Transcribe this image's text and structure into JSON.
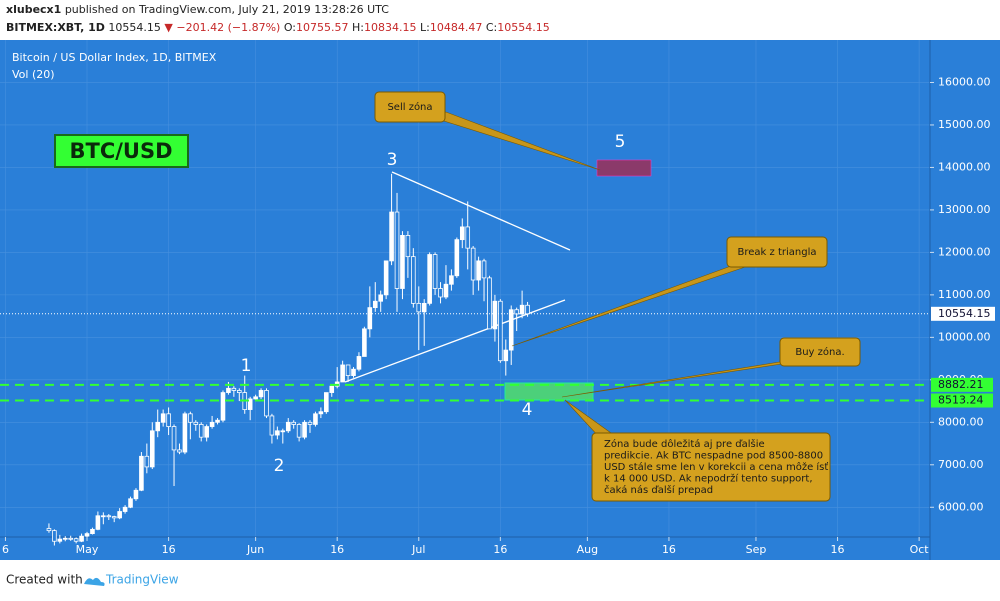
{
  "header": {
    "author": "xlubecx1",
    "published": "published on TradingView.com, July 21, 2019 13:28:26 UTC",
    "symbol": "BITMEX:XBT, 1D",
    "last": "10554.15",
    "change": "▼ −201.42 (−1.87%)",
    "o_label": "O:",
    "o": "10755.57",
    "h_label": "H:",
    "h": "10834.15",
    "l_label": "L:",
    "l": "10484.47",
    "c_label": "C:",
    "c": "10554.15"
  },
  "chart_data": {
    "type": "candlestick",
    "title": "Bitcoin / US Dollar Index, 1D, BITMEX",
    "indicator": "Vol (20)",
    "xlim": [
      "Apr 15",
      "Oct 3"
    ],
    "ylim": [
      5300,
      17000
    ],
    "xticks": [
      {
        "value": "Apr 16",
        "label": "6"
      },
      {
        "value": "May 1",
        "label": "May"
      },
      {
        "value": "May 16",
        "label": "16"
      },
      {
        "value": "Jun 1",
        "label": "Jun"
      },
      {
        "value": "Jun 16",
        "label": "16"
      },
      {
        "value": "Jul 1",
        "label": "Jul"
      },
      {
        "value": "Jul 16",
        "label": "16"
      },
      {
        "value": "Aug 1",
        "label": "Aug"
      },
      {
        "value": "Aug 16",
        "label": "16"
      },
      {
        "value": "Sep 1",
        "label": "Sep"
      },
      {
        "value": "Sep 16",
        "label": "16"
      },
      {
        "value": "Oct 1",
        "label": "Oct"
      }
    ],
    "yticks": [
      {
        "value": 6000,
        "label": "6000.00"
      },
      {
        "value": 7000,
        "label": "7000.00"
      },
      {
        "value": 8000,
        "label": "8000.00"
      },
      {
        "value": 9000,
        "label": "9000.00"
      },
      {
        "value": 10000,
        "label": "10000.00"
      },
      {
        "value": 11000,
        "label": "11000.00"
      },
      {
        "value": 12000,
        "label": "12000.00"
      },
      {
        "value": 13000,
        "label": "13000.00"
      },
      {
        "value": 14000,
        "label": "14000.00"
      },
      {
        "value": 15000,
        "label": "15000.00"
      },
      {
        "value": 16000,
        "label": "16000.00"
      }
    ],
    "grid": true,
    "up_color": "#ffffff",
    "down_color": "#ffffff",
    "x": [
      "Apr 24",
      "Apr 25",
      "Apr 26",
      "Apr 27",
      "Apr 28",
      "Apr 29",
      "Apr 30",
      "May 1",
      "May 2",
      "May 3",
      "May 4",
      "May 5",
      "May 6",
      "May 7",
      "May 8",
      "May 9",
      "May 10",
      "May 11",
      "May 12",
      "May 13",
      "May 14",
      "May 15",
      "May 16",
      "May 17",
      "May 18",
      "May 19",
      "May 20",
      "May 21",
      "May 22",
      "May 23",
      "May 24",
      "May 25",
      "May 26",
      "May 27",
      "May 28",
      "May 29",
      "May 30",
      "May 31",
      "Jun 1",
      "Jun 2",
      "Jun 3",
      "Jun 4",
      "Jun 5",
      "Jun 6",
      "Jun 7",
      "Jun 8",
      "Jun 9",
      "Jun 10",
      "Jun 11",
      "Jun 12",
      "Jun 13",
      "Jun 14",
      "Jun 15",
      "Jun 16",
      "Jun 17",
      "Jun 18",
      "Jun 19",
      "Jun 20",
      "Jun 21",
      "Jun 22",
      "Jun 23",
      "Jun 24",
      "Jun 25",
      "Jun 26",
      "Jun 27",
      "Jun 28",
      "Jun 29",
      "Jun 30",
      "Jul 1",
      "Jul 2",
      "Jul 3",
      "Jul 4",
      "Jul 5",
      "Jul 6",
      "Jul 7",
      "Jul 8",
      "Jul 9",
      "Jul 10",
      "Jul 11",
      "Jul 12",
      "Jul 13",
      "Jul 14",
      "Jul 15",
      "Jul 16",
      "Jul 17",
      "Jul 18",
      "Jul 19",
      "Jul 20",
      "Jul 21"
    ],
    "ohlc": [
      [
        5500,
        5620,
        5400,
        5450
      ],
      [
        5450,
        5480,
        5100,
        5200
      ],
      [
        5200,
        5350,
        5150,
        5250
      ],
      [
        5250,
        5320,
        5200,
        5270
      ],
      [
        5270,
        5330,
        5210,
        5260
      ],
      [
        5260,
        5290,
        5150,
        5200
      ],
      [
        5200,
        5380,
        5180,
        5320
      ],
      [
        5320,
        5420,
        5300,
        5380
      ],
      [
        5380,
        5520,
        5360,
        5480
      ],
      [
        5480,
        5900,
        5460,
        5800
      ],
      [
        5800,
        5880,
        5600,
        5800
      ],
      [
        5800,
        5840,
        5700,
        5780
      ],
      [
        5780,
        5800,
        5650,
        5750
      ],
      [
        5750,
        5980,
        5720,
        5900
      ],
      [
        5900,
        6050,
        5850,
        6000
      ],
      [
        6000,
        6250,
        5980,
        6200
      ],
      [
        6200,
        6450,
        6150,
        6400
      ],
      [
        6400,
        7300,
        6380,
        7200
      ],
      [
        7200,
        7500,
        6800,
        6950
      ],
      [
        6950,
        8000,
        6900,
        7800
      ],
      [
        7800,
        8300,
        7650,
        8000
      ],
      [
        8000,
        8300,
        7900,
        8200
      ],
      [
        8200,
        8350,
        7700,
        7900
      ],
      [
        7900,
        7950,
        6500,
        7350
      ],
      [
        7350,
        7500,
        7250,
        7300
      ],
      [
        7300,
        8250,
        7250,
        8200
      ],
      [
        8200,
        8250,
        7600,
        8000
      ],
      [
        8000,
        8050,
        7800,
        7950
      ],
      [
        7950,
        8000,
        7550,
        7650
      ],
      [
        7650,
        7950,
        7550,
        7900
      ],
      [
        7900,
        8150,
        7850,
        8000
      ],
      [
        8000,
        8100,
        7950,
        8050
      ],
      [
        8050,
        8750,
        8000,
        8700
      ],
      [
        8700,
        8950,
        8650,
        8800
      ],
      [
        8800,
        8850,
        8600,
        8750
      ],
      [
        8750,
        8800,
        8500,
        8700
      ],
      [
        8700,
        9100,
        8200,
        8300
      ],
      [
        8300,
        8600,
        8050,
        8550
      ],
      [
        8550,
        8650,
        8500,
        8600
      ],
      [
        8600,
        8800,
        8550,
        8750
      ],
      [
        8750,
        8800,
        8100,
        8150
      ],
      [
        8150,
        8200,
        7500,
        7700
      ],
      [
        7700,
        7900,
        7600,
        7800
      ],
      [
        7800,
        7850,
        7500,
        7800
      ],
      [
        7800,
        8100,
        7750,
        8000
      ],
      [
        8000,
        8050,
        7850,
        7950
      ],
      [
        7950,
        7980,
        7550,
        7650
      ],
      [
        7650,
        8050,
        7600,
        8000
      ],
      [
        8000,
        8050,
        7750,
        7950
      ],
      [
        7950,
        8250,
        7900,
        8200
      ],
      [
        8200,
        8350,
        8100,
        8250
      ],
      [
        8250,
        8700,
        8200,
        8700
      ],
      [
        8700,
        8900,
        8600,
        8850
      ],
      [
        8850,
        9300,
        8800,
        8950
      ],
      [
        8950,
        9450,
        8950,
        9350
      ],
      [
        9350,
        9350,
        8950,
        9100
      ],
      [
        9100,
        9300,
        9050,
        9250
      ],
      [
        9250,
        9650,
        9200,
        9550
      ],
      [
        9550,
        10250,
        9550,
        10200
      ],
      [
        10200,
        11200,
        10000,
        10700
      ],
      [
        10700,
        11300,
        10600,
        10850
      ],
      [
        10850,
        11100,
        10600,
        11000
      ],
      [
        11000,
        11800,
        10900,
        11800
      ],
      [
        11800,
        13850,
        11700,
        12950
      ],
      [
        12950,
        13400,
        10600,
        11150
      ],
      [
        11150,
        12500,
        10900,
        12400
      ],
      [
        12400,
        12500,
        11400,
        11900
      ],
      [
        11900,
        12100,
        10700,
        10800
      ],
      [
        10800,
        11200,
        9700,
        10600
      ],
      [
        10600,
        10900,
        9800,
        10800
      ],
      [
        10800,
        12000,
        10750,
        11950
      ],
      [
        11950,
        12000,
        11000,
        11150
      ],
      [
        11150,
        11300,
        10800,
        10950
      ],
      [
        10950,
        11700,
        10900,
        11250
      ],
      [
        11250,
        11600,
        11100,
        11450
      ],
      [
        11450,
        12350,
        11400,
        12300
      ],
      [
        12300,
        12800,
        12100,
        12600
      ],
      [
        12600,
        13200,
        11600,
        12100
      ],
      [
        12100,
        12150,
        11000,
        11350
      ],
      [
        11350,
        11900,
        11100,
        11800
      ],
      [
        11800,
        11850,
        10850,
        11400
      ],
      [
        11400,
        11450,
        10200,
        10200
      ],
      [
        10200,
        11000,
        9900,
        10850
      ],
      [
        10850,
        10900,
        9400,
        9450
      ],
      [
        9450,
        9950,
        9100,
        9700
      ],
      [
        9700,
        10750,
        9350,
        10650
      ],
      [
        10650,
        10700,
        10150,
        10550
      ],
      [
        10550,
        11100,
        10450,
        10755.57
      ],
      [
        10755.57,
        10834.15,
        10484.47,
        10554.15
      ]
    ],
    "price_line": {
      "value": 10554.15,
      "color": "#ffffff"
    },
    "hlines": [
      {
        "value": 8882.21,
        "color": "#33ff33"
      },
      {
        "value": 8513.24,
        "color": "#33ff33"
      }
    ]
  },
  "annotations": {
    "pair": "BTC/USD",
    "waves": [
      "1",
      "2",
      "3",
      "4",
      "5"
    ],
    "sell": "Sell zóna",
    "break": "Break z triangla",
    "buy": "Buy zóna.",
    "note": [
      "Zóna bude dôležitá aj pre ďalšie",
      "predikcie. Ak BTC nespadne pod 8500-8800",
      "USD stále sme len v korekcii a cena môže ísť",
      "k 14 000 USD. Ak nepodrží tento support,",
      "čaká nás ďalší prepad"
    ]
  },
  "footer": {
    "created": "Created with",
    "brand": "TradingView"
  }
}
